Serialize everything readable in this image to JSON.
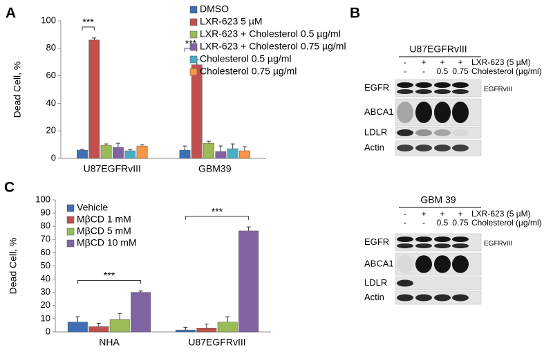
{
  "panel_labels": [
    "A",
    "B",
    "C"
  ],
  "chart_data": [
    {
      "type": "bar",
      "y_label": "Dead Cell, %",
      "categories": [
        "U87EGFRvIII",
        "GBM39"
      ],
      "series": [
        {
          "name": "DMSO",
          "color": "#3f6fb5",
          "values": [
            6,
            6
          ],
          "errors": [
            0.5,
            3
          ]
        },
        {
          "name": "LXR-623 5 µM",
          "color": "#c0504d",
          "values": [
            86,
            68
          ],
          "errors": [
            1.5,
            4
          ]
        },
        {
          "name": "LXR-623 + Cholesterol 0.5 µg/ml",
          "color": "#9bbb59",
          "values": [
            9.5,
            11
          ],
          "errors": [
            1,
            1.5
          ]
        },
        {
          "name": "LXR-623 + Cholesterol 0.75 µg/ml",
          "color": "#8064a2",
          "values": [
            8,
            5
          ],
          "errors": [
            3,
            4
          ]
        },
        {
          "name": "Cholesterol 0.5 µg/ml",
          "color": "#4bacc6",
          "values": [
            5.5,
            7
          ],
          "errors": [
            1,
            3.5
          ]
        },
        {
          "name": "Cholesterol 0.75 µg/ml",
          "color": "#f79646",
          "values": [
            9,
            5.5
          ],
          "errors": [
            1,
            3
          ]
        }
      ],
      "ylim": [
        0,
        100
      ],
      "yticks": [
        0,
        20,
        40,
        60,
        80,
        100
      ],
      "annotations": [
        "***",
        "***"
      ]
    },
    {
      "type": "bar",
      "y_label": "Dead Cell, %",
      "categories": [
        "NHA",
        "U87EGFRvIII"
      ],
      "series": [
        {
          "name": "Vehicle",
          "color": "#3f6fb5",
          "values": [
            7.5,
            1.5
          ],
          "errors": [
            4,
            2
          ]
        },
        {
          "name": "MβCD 1 mM",
          "color": "#c0504d",
          "values": [
            4,
            3
          ],
          "errors": [
            2.5,
            3
          ]
        },
        {
          "name": "MβCD 5 mM",
          "color": "#9bbb59",
          "values": [
            9.5,
            7.5
          ],
          "errors": [
            4.5,
            4
          ]
        },
        {
          "name": "MβCD 10 mM",
          "color": "#8064a2",
          "values": [
            30,
            76.5
          ],
          "errors": [
            1,
            3
          ]
        }
      ],
      "ylim": [
        0,
        100
      ],
      "yticks": [
        0,
        10,
        20,
        30,
        40,
        50,
        60,
        70,
        80,
        90,
        100
      ],
      "annotations": [
        "***",
        "***"
      ]
    }
  ],
  "blots": [
    {
      "title": "U87EGFRvIII",
      "conditions": [
        {
          "label": "LXR-623 (5 µM)",
          "values": [
            "-",
            "+",
            "+",
            "+"
          ]
        },
        {
          "label": "Cholesterol (µg/ml)",
          "values": [
            "-",
            "-",
            "0.5",
            "0.75"
          ]
        }
      ],
      "rows": [
        "EGFR",
        "ABCA1",
        "LDLR",
        "Actin"
      ],
      "side_label": "EGFRvIII"
    },
    {
      "title": "GBM 39",
      "conditions": [
        {
          "label": "LXR-623 (5 µM)",
          "values": [
            "-",
            "+",
            "+",
            "+"
          ]
        },
        {
          "label": "Cholesterol (µg/ml)",
          "values": [
            "-",
            "-",
            "0.5",
            "0.75"
          ]
        }
      ],
      "rows": [
        "EGFR",
        "ABCA1",
        "LDLR",
        "Actin"
      ],
      "side_label": "EGFRvIII"
    }
  ]
}
